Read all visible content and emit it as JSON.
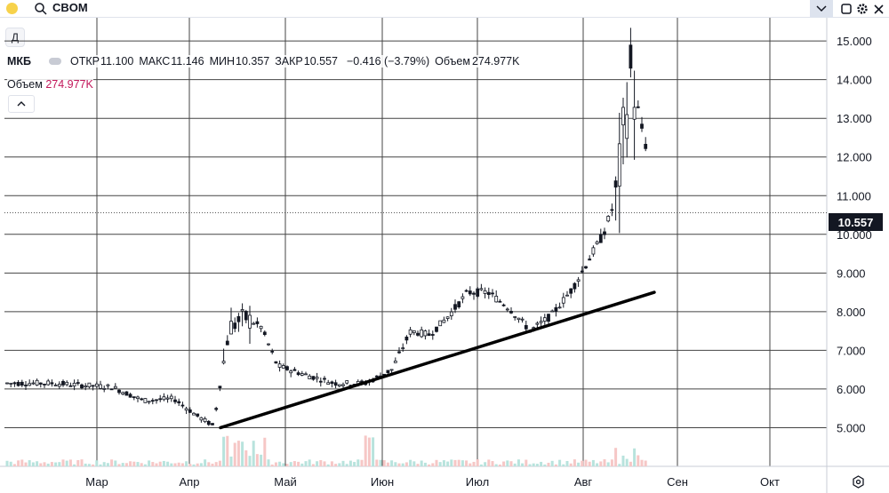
{
  "toolbar": {
    "symbol": "CBOM",
    "period_label": "Д",
    "icons": [
      "search-icon",
      "chevron-down-icon",
      "maximize-icon",
      "gear-icon",
      "close-icon"
    ]
  },
  "legend": {
    "ticker": "МКБ",
    "open_label": "ОТКР",
    "open": "11.100",
    "high_label": "МАКС",
    "high": "11.146",
    "low_label": "МИН",
    "low": "10.357",
    "close_label": "ЗАКР",
    "close": "10.557",
    "change": "−0.416 (−3.79%)",
    "volume_label": "Объем",
    "volume": "274.977K"
  },
  "volume_legend": {
    "label": "Объем",
    "value": "274.977K"
  },
  "colors": {
    "up": "#26a69a",
    "down": "#ef5350",
    "candle_up": "#131722",
    "candle_down": "#131722",
    "grid": "#131722",
    "volume_up": "#b8e3dd",
    "volume_down": "#f6c7c6",
    "accent": "#2962ff"
  },
  "chart_data": {
    "type": "candlestick",
    "symbol": "МКБ",
    "interval": "1D",
    "y_axis": {
      "min": 4,
      "max": 15.6,
      "ticks": [
        "15.000",
        "14.000",
        "13.000",
        "12.000",
        "11.000",
        "10.000",
        "9.000",
        "8.000",
        "7.000",
        "6.000",
        "5.000"
      ],
      "side": "right"
    },
    "x_axis": {
      "ticks": [
        "Мар",
        "Апр",
        "Май",
        "Июн",
        "Июл",
        "Авг",
        "Сен",
        "Окт"
      ]
    },
    "last_price": "10.557",
    "trendline": {
      "from": [
        "Апр",
        5.0
      ],
      "to": [
        "Авг",
        8.5
      ]
    },
    "price_series": [
      [
        "Фев",
        6.15
      ],
      [
        "Мар",
        6.05
      ],
      [
        "Мар",
        5.7
      ],
      [
        "Мар",
        5.75
      ],
      [
        "Апр",
        5.3
      ],
      [
        "Апр",
        5.05
      ],
      [
        "Апр",
        7.6
      ],
      [
        "Апр",
        7.85
      ],
      [
        "Апр",
        7.6
      ],
      [
        "Апр",
        6.6
      ],
      [
        "Май",
        6.4
      ],
      [
        "Май",
        6.15
      ],
      [
        "Май",
        6.15
      ],
      [
        "Июн",
        6.5
      ],
      [
        "Июн",
        7.5
      ],
      [
        "Июн",
        7.4
      ],
      [
        "Июн",
        7.9
      ],
      [
        "Июн",
        8.5
      ],
      [
        "Июл",
        8.5
      ],
      [
        "Июл",
        8.1
      ],
      [
        "Июл",
        7.5
      ],
      [
        "Июл",
        7.9
      ],
      [
        "Июл",
        8.6
      ],
      [
        "Авг",
        9.4
      ],
      [
        "Авг",
        10.0
      ],
      [
        "Авг",
        11.0
      ],
      [
        "Авг",
        14.2
      ],
      [
        "Авг",
        12.5
      ],
      [
        "Авг",
        11.1
      ],
      [
        "Авг",
        10.557
      ]
    ]
  }
}
